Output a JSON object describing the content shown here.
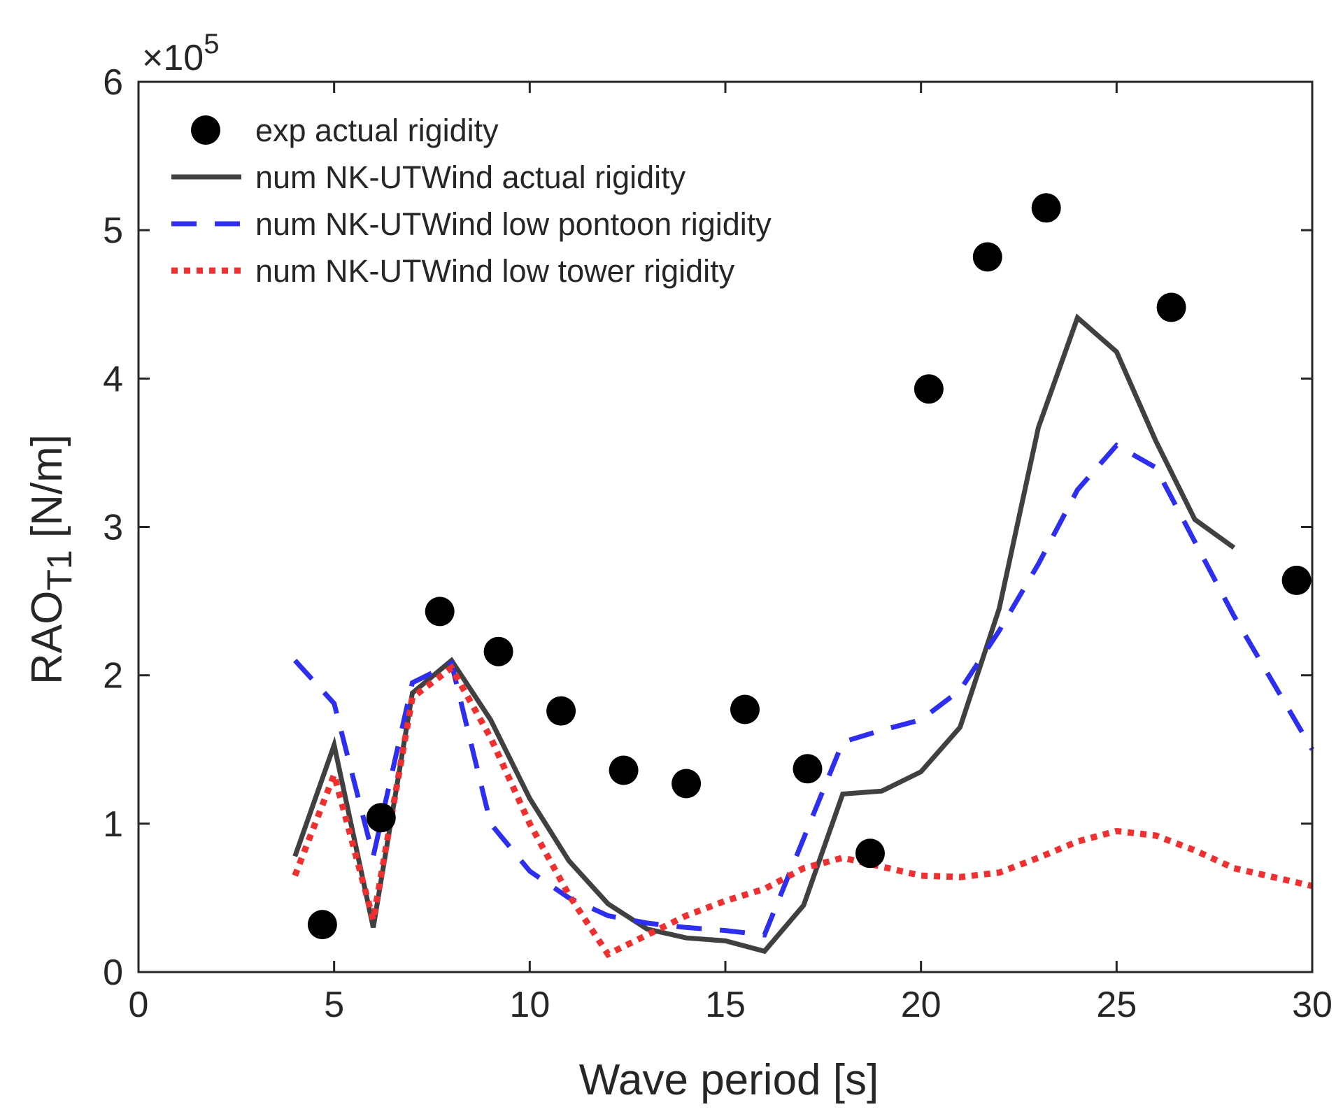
{
  "chart_data": {
    "type": "line",
    "title": "",
    "xlabel": "Wave period [s]",
    "ylabel_main": "RAO",
    "ylabel_sub": "T1",
    "ylabel_units": " [N/m]",
    "y_exponent_prefix": "×10",
    "y_exponent_power": "5",
    "xlim": [
      0,
      30
    ],
    "ylim": [
      0,
      6
    ],
    "x_ticks": [
      0,
      5,
      10,
      15,
      20,
      25,
      30
    ],
    "x_tick_labels": [
      "0",
      "5",
      "10",
      "15",
      "20",
      "25",
      "30"
    ],
    "y_ticks": [
      0,
      1,
      2,
      3,
      4,
      5,
      6
    ],
    "y_tick_labels": [
      "0",
      "1",
      "2",
      "3",
      "4",
      "5",
      "6"
    ],
    "grid": false,
    "legend_position": "top-left",
    "series": [
      {
        "name": "exp actual rigidity",
        "style": "markers",
        "color": "#000000",
        "x": [
          4.7,
          6.2,
          7.7,
          9.2,
          10.8,
          12.4,
          14.0,
          15.5,
          17.1,
          18.7,
          20.2,
          21.7,
          23.2,
          26.4,
          29.6
        ],
        "y": [
          0.32,
          1.04,
          2.43,
          2.16,
          1.76,
          1.36,
          1.27,
          1.77,
          1.37,
          0.8,
          3.93,
          4.82,
          5.15,
          4.48,
          2.64
        ]
      },
      {
        "name": "num NK-UTWind actual rigidity",
        "style": "solid",
        "color": "#404040",
        "x": [
          4,
          5,
          6,
          7,
          8,
          9,
          10,
          11,
          12,
          13,
          14,
          15,
          16,
          17,
          18,
          19,
          20,
          21,
          22,
          23,
          24,
          25,
          26,
          27,
          28
        ],
        "y": [
          0.78,
          1.53,
          0.3,
          1.88,
          2.1,
          1.7,
          1.17,
          0.75,
          0.46,
          0.29,
          0.23,
          0.21,
          0.14,
          0.45,
          1.2,
          1.22,
          1.35,
          1.65,
          2.45,
          3.67,
          4.41,
          4.18,
          3.58,
          3.05,
          2.86
        ]
      },
      {
        "name": "num NK-UTWind low pontoon rigidity",
        "style": "dashed",
        "color": "#2e2ef0",
        "x": [
          4,
          5,
          6,
          7,
          8,
          9,
          10,
          11,
          12,
          13,
          14,
          15,
          16,
          17,
          18,
          19,
          20,
          21,
          22,
          23,
          24,
          25,
          26,
          27,
          28,
          29,
          30
        ],
        "y": [
          2.1,
          1.81,
          0.78,
          1.95,
          2.08,
          1.0,
          0.68,
          0.5,
          0.38,
          0.33,
          0.3,
          0.28,
          0.25,
          0.9,
          1.55,
          1.63,
          1.7,
          1.9,
          2.3,
          2.75,
          3.25,
          3.55,
          3.4,
          2.9,
          2.4,
          1.95,
          1.5
        ]
      },
      {
        "name": "num NK-UTWind low tower rigidity",
        "style": "dotted",
        "color": "#f03030",
        "x": [
          4,
          5,
          6,
          7,
          8,
          9,
          10,
          11,
          12,
          13,
          14,
          15,
          16,
          17,
          18,
          19,
          20,
          21,
          22,
          23,
          24,
          25,
          26,
          27,
          28,
          29,
          30
        ],
        "y": [
          0.65,
          1.33,
          0.35,
          1.85,
          2.05,
          1.58,
          1.0,
          0.52,
          0.12,
          0.25,
          0.38,
          0.48,
          0.56,
          0.7,
          0.77,
          0.71,
          0.65,
          0.64,
          0.67,
          0.77,
          0.88,
          0.95,
          0.92,
          0.82,
          0.7,
          0.64,
          0.58
        ]
      }
    ]
  }
}
